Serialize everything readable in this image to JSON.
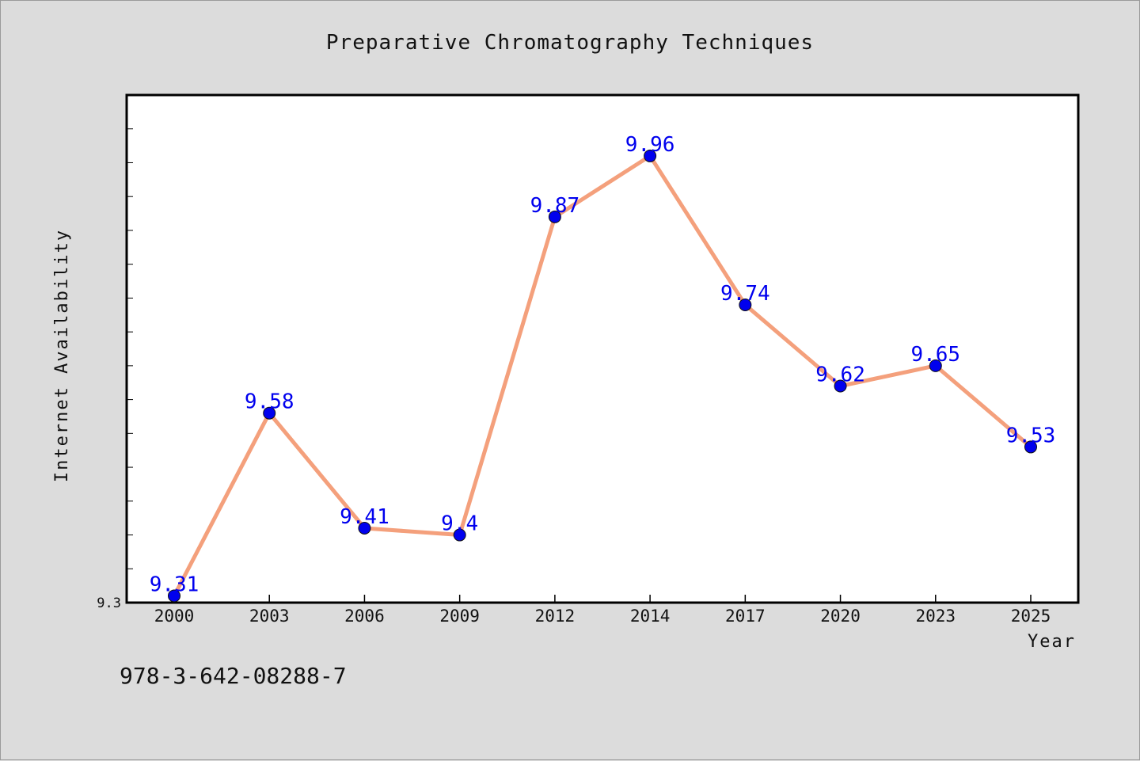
{
  "chart_data": {
    "type": "line",
    "title": "Preparative Chromatography Techniques",
    "xlabel": "Year",
    "ylabel": "Internet Availability",
    "categories": [
      "2000",
      "2003",
      "2006",
      "2009",
      "2012",
      "2014",
      "2017",
      "2020",
      "2023",
      "2025"
    ],
    "series": [
      {
        "values": [
          9.31,
          9.58,
          9.41,
          9.4,
          9.87,
          9.96,
          9.74,
          9.62,
          9.65,
          9.53
        ]
      }
    ],
    "data_labels": [
      "9.31",
      "9.58",
      "9.41",
      "9.4",
      "9.87",
      "9.96",
      "9.74",
      "9.62",
      "9.65",
      "9.53"
    ],
    "y_tick_labels": [
      "9.3"
    ],
    "ylim": [
      9.3,
      10.05
    ],
    "grid": false,
    "line_color": "#f4a07c",
    "marker_color": "#0000ee",
    "label_color": "#0000ee"
  },
  "footer_text": "978-3-642-08288-7"
}
